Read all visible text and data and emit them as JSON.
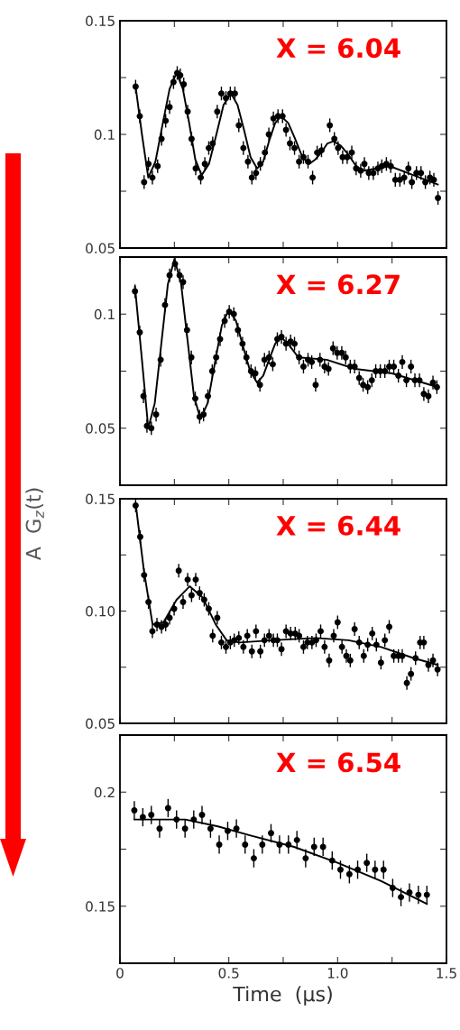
{
  "chart_data": [
    {
      "type": "scatter",
      "annotations": [
        "X = 6.04"
      ],
      "xlim": [
        0,
        1.5
      ],
      "ylim": [
        0.05,
        0.15
      ],
      "tick_labels": "y",
      "xticks": [
        {
          "value": 0,
          "label": null
        },
        {
          "value": 0.25,
          "label": null
        },
        {
          "value": 0.5,
          "label": null
        },
        {
          "value": 0.75,
          "label": null
        },
        {
          "value": 1.0,
          "label": null
        },
        {
          "value": 1.25,
          "label": null
        },
        {
          "value": 1.5,
          "label": null
        }
      ],
      "yticks": [
        0.05,
        {
          "value": 0.075,
          "label": null
        },
        0.1,
        {
          "value": 0.125,
          "label": null
        },
        0.15
      ],
      "series": [
        {
          "marker": "circle",
          "color": "#000000",
          "x": [
            0.072,
            0.091,
            0.111,
            0.131,
            0.149,
            0.173,
            0.191,
            0.21,
            0.228,
            0.246,
            0.263,
            0.277,
            0.293,
            0.311,
            0.329,
            0.348,
            0.371,
            0.39,
            0.408,
            0.426,
            0.447,
            0.466,
            0.487,
            0.507,
            0.528,
            0.546,
            0.567,
            0.588,
            0.606,
            0.625,
            0.645,
            0.666,
            0.684,
            0.705,
            0.726,
            0.747,
            0.763,
            0.781,
            0.802,
            0.823,
            0.843,
            0.864,
            0.885,
            0.906,
            0.926,
            0.964,
            0.985,
            1.002,
            1.023,
            1.044,
            1.065,
            1.085,
            1.106,
            1.123,
            1.143,
            1.164,
            1.185,
            1.203,
            1.224,
            1.244,
            1.265,
            1.286,
            1.306,
            1.325,
            1.341,
            1.362,
            1.383,
            1.403,
            1.424,
            1.442,
            1.461
          ],
          "values": [
            0.121,
            0.108,
            0.079,
            0.087,
            0.081,
            0.086,
            0.098,
            0.106,
            0.112,
            0.123,
            0.127,
            0.126,
            0.122,
            0.11,
            0.098,
            0.085,
            0.081,
            0.087,
            0.094,
            0.096,
            0.11,
            0.118,
            0.116,
            0.118,
            0.118,
            0.104,
            0.094,
            0.088,
            0.081,
            0.083,
            0.087,
            0.092,
            0.1,
            0.107,
            0.108,
            0.108,
            0.102,
            0.096,
            0.094,
            0.088,
            0.09,
            0.088,
            0.081,
            0.092,
            0.093,
            0.104,
            0.098,
            0.094,
            0.09,
            0.09,
            0.092,
            0.085,
            0.084,
            0.087,
            0.083,
            0.083,
            0.085,
            0.086,
            0.087,
            0.086,
            0.08,
            0.08,
            0.081,
            0.085,
            0.079,
            0.083,
            0.083,
            0.079,
            0.081,
            0.08,
            0.072
          ],
          "errors": [
            0.003,
            0.003,
            0.003,
            0.003,
            0.003,
            0.003,
            0.003,
            0.003,
            0.003,
            0.003,
            0.003,
            0.003,
            0.003,
            0.003,
            0.003,
            0.003,
            0.003,
            0.003,
            0.003,
            0.003,
            0.003,
            0.003,
            0.003,
            0.003,
            0.003,
            0.003,
            0.003,
            0.003,
            0.003,
            0.003,
            0.003,
            0.003,
            0.003,
            0.003,
            0.003,
            0.003,
            0.003,
            0.003,
            0.003,
            0.003,
            0.003,
            0.003,
            0.003,
            0.003,
            0.003,
            0.003,
            0.003,
            0.003,
            0.003,
            0.003,
            0.003,
            0.003,
            0.003,
            0.003,
            0.003,
            0.003,
            0.003,
            0.003,
            0.003,
            0.003,
            0.003,
            0.003,
            0.003,
            0.003,
            0.003,
            0.003,
            0.003,
            0.003,
            0.003,
            0.003,
            0.003
          ]
        },
        {
          "type": "line",
          "color": "#000000",
          "x": [
            0.072,
            0.101,
            0.13,
            0.163,
            0.195,
            0.228,
            0.26,
            0.289,
            0.318,
            0.346,
            0.375,
            0.409,
            0.443,
            0.476,
            0.51,
            0.54,
            0.57,
            0.6,
            0.63,
            0.658,
            0.685,
            0.713,
            0.74,
            0.773,
            0.805,
            0.838,
            0.87,
            0.898,
            0.925,
            0.953,
            0.98,
            1.015,
            1.05,
            1.085,
            1.12,
            1.18,
            1.24,
            1.35,
            1.46
          ],
          "values": [
            0.121,
            0.1,
            0.081,
            0.088,
            0.104,
            0.12,
            0.127,
            0.12,
            0.105,
            0.089,
            0.082,
            0.087,
            0.1,
            0.113,
            0.118,
            0.113,
            0.102,
            0.09,
            0.085,
            0.088,
            0.097,
            0.105,
            0.108,
            0.105,
            0.098,
            0.09,
            0.087,
            0.089,
            0.092,
            0.096,
            0.097,
            0.095,
            0.091,
            0.086,
            0.084,
            0.085,
            0.086,
            0.082,
            0.078
          ]
        }
      ]
    },
    {
      "type": "scatter",
      "annotations": [
        "X = 6.27"
      ],
      "xlim": [
        0,
        1.5
      ],
      "ylim": [
        0.025,
        0.125
      ],
      "tick_labels": "y",
      "xticks": [
        {
          "value": 0,
          "label": null
        },
        {
          "value": 0.25,
          "label": null
        },
        {
          "value": 0.5,
          "label": null
        },
        {
          "value": 0.75,
          "label": null
        },
        {
          "value": 1.0,
          "label": null
        },
        {
          "value": 1.25,
          "label": null
        },
        {
          "value": 1.5,
          "label": null
        }
      ],
      "yticks": [
        0.05,
        {
          "value": 0.075,
          "label": null
        },
        0.1
      ],
      "series": [
        {
          "marker": "circle",
          "color": "#000000",
          "x": [
            0.069,
            0.091,
            0.108,
            0.124,
            0.144,
            0.166,
            0.187,
            0.207,
            0.228,
            0.253,
            0.274,
            0.29,
            0.308,
            0.328,
            0.346,
            0.366,
            0.384,
            0.404,
            0.424,
            0.442,
            0.46,
            0.481,
            0.502,
            0.523,
            0.542,
            0.563,
            0.581,
            0.602,
            0.622,
            0.643,
            0.664,
            0.685,
            0.702,
            0.723,
            0.742,
            0.763,
            0.784,
            0.802,
            0.823,
            0.843,
            0.864,
            0.881,
            0.899,
            0.919,
            0.94,
            0.958,
            0.979,
            0.998,
            1.019,
            1.037,
            1.058,
            1.078,
            1.099,
            1.117,
            1.138,
            1.157,
            1.175,
            1.196,
            1.217,
            1.237,
            1.258,
            1.279,
            1.297,
            1.316,
            1.337,
            1.355,
            1.376,
            1.396,
            1.417,
            1.438,
            1.456
          ],
          "values": [
            0.11,
            0.092,
            0.064,
            0.051,
            0.05,
            0.056,
            0.08,
            0.104,
            0.117,
            0.122,
            0.117,
            0.114,
            0.093,
            0.081,
            0.063,
            0.055,
            0.056,
            0.064,
            0.075,
            0.081,
            0.089,
            0.097,
            0.101,
            0.1,
            0.093,
            0.087,
            0.081,
            0.075,
            0.074,
            0.069,
            0.08,
            0.081,
            0.078,
            0.089,
            0.09,
            0.087,
            0.088,
            0.087,
            0.081,
            0.077,
            0.08,
            0.079,
            0.069,
            0.08,
            0.077,
            0.076,
            0.085,
            0.083,
            0.083,
            0.081,
            0.077,
            0.077,
            0.072,
            0.069,
            0.068,
            0.071,
            0.075,
            0.075,
            0.075,
            0.077,
            0.077,
            0.073,
            0.079,
            0.071,
            0.077,
            0.071,
            0.071,
            0.065,
            0.064,
            0.07,
            0.068
          ],
          "errors": [
            0.003,
            0.003,
            0.003,
            0.003,
            0.003,
            0.003,
            0.003,
            0.003,
            0.003,
            0.003,
            0.003,
            0.003,
            0.003,
            0.003,
            0.003,
            0.003,
            0.003,
            0.003,
            0.003,
            0.003,
            0.003,
            0.003,
            0.003,
            0.003,
            0.003,
            0.003,
            0.003,
            0.003,
            0.003,
            0.003,
            0.003,
            0.003,
            0.003,
            0.003,
            0.003,
            0.003,
            0.003,
            0.003,
            0.003,
            0.003,
            0.003,
            0.003,
            0.003,
            0.003,
            0.003,
            0.003,
            0.003,
            0.003,
            0.003,
            0.003,
            0.003,
            0.003,
            0.003,
            0.003,
            0.003,
            0.003,
            0.003,
            0.003,
            0.003,
            0.003,
            0.003,
            0.003,
            0.003,
            0.003,
            0.003,
            0.003,
            0.003,
            0.003,
            0.003,
            0.003,
            0.003
          ]
        },
        {
          "type": "line",
          "color": "#000000",
          "x": [
            0.069,
            0.1,
            0.13,
            0.16,
            0.19,
            0.22,
            0.25,
            0.28,
            0.31,
            0.34,
            0.37,
            0.403,
            0.435,
            0.468,
            0.5,
            0.533,
            0.565,
            0.598,
            0.63,
            0.658,
            0.685,
            0.713,
            0.74,
            0.78,
            0.82,
            0.95,
            1.08,
            1.25,
            1.46
          ],
          "values": [
            0.112,
            0.081,
            0.05,
            0.061,
            0.087,
            0.113,
            0.124,
            0.114,
            0.089,
            0.064,
            0.054,
            0.061,
            0.078,
            0.095,
            0.102,
            0.097,
            0.086,
            0.075,
            0.07,
            0.073,
            0.08,
            0.087,
            0.09,
            0.086,
            0.081,
            0.08,
            0.076,
            0.074,
            0.068
          ]
        }
      ]
    },
    {
      "type": "scatter",
      "annotations": [
        "X = 6.44"
      ],
      "ylabel": "A  G$_{z}$(t)",
      "xlim": [
        0,
        1.5
      ],
      "ylim": [
        0.05,
        0.15
      ],
      "tick_labels": "y",
      "xticks": [
        {
          "value": 0,
          "label": null
        },
        {
          "value": 0.25,
          "label": null
        },
        {
          "value": 0.5,
          "label": null
        },
        {
          "value": 0.75,
          "label": null
        },
        {
          "value": 1.0,
          "label": null
        },
        {
          "value": 1.25,
          "label": null
        },
        {
          "value": 1.5,
          "label": null
        }
      ],
      "yticks": [
        0.05,
        {
          "value": 0.075,
          "label": null
        },
        {
          "value": 0.1,
          "label": "0.10"
        },
        {
          "value": 0.125,
          "label": null
        },
        0.15
      ],
      "series": [
        {
          "marker": "circle",
          "color": "#000000",
          "x": [
            0.072,
            0.093,
            0.111,
            0.131,
            0.149,
            0.17,
            0.191,
            0.21,
            0.228,
            0.249,
            0.27,
            0.29,
            0.311,
            0.329,
            0.348,
            0.366,
            0.387,
            0.408,
            0.426,
            0.447,
            0.466,
            0.487,
            0.507,
            0.525,
            0.546,
            0.567,
            0.585,
            0.606,
            0.625,
            0.645,
            0.664,
            0.685,
            0.705,
            0.723,
            0.742,
            0.763,
            0.784,
            0.805,
            0.823,
            0.843,
            0.861,
            0.882,
            0.901,
            0.922,
            0.94,
            0.961,
            0.982,
            1.0,
            1.02,
            1.04,
            1.058,
            1.078,
            1.099,
            1.12,
            1.138,
            1.159,
            1.178,
            1.199,
            1.217,
            1.237,
            1.258,
            1.279,
            1.297,
            1.318,
            1.337,
            1.358,
            1.379,
            1.396,
            1.417,
            1.438,
            1.459
          ],
          "values": [
            0.147,
            0.133,
            0.116,
            0.104,
            0.091,
            0.094,
            0.093,
            0.094,
            0.097,
            0.101,
            0.118,
            0.104,
            0.114,
            0.107,
            0.114,
            0.108,
            0.105,
            0.101,
            0.089,
            0.097,
            0.086,
            0.084,
            0.086,
            0.087,
            0.088,
            0.084,
            0.089,
            0.082,
            0.091,
            0.082,
            0.087,
            0.089,
            0.087,
            0.087,
            0.083,
            0.091,
            0.09,
            0.09,
            0.089,
            0.084,
            0.086,
            0.086,
            0.087,
            0.091,
            0.084,
            0.078,
            0.089,
            0.095,
            0.084,
            0.08,
            0.078,
            0.092,
            0.086,
            0.08,
            0.085,
            0.09,
            0.085,
            0.077,
            0.087,
            0.093,
            0.08,
            0.08,
            0.08,
            0.068,
            0.072,
            0.079,
            0.086,
            0.086,
            0.076,
            0.078,
            0.074
          ],
          "errors": [
            0.003,
            0.003,
            0.003,
            0.003,
            0.003,
            0.003,
            0.003,
            0.003,
            0.003,
            0.003,
            0.003,
            0.003,
            0.003,
            0.003,
            0.003,
            0.003,
            0.003,
            0.003,
            0.003,
            0.003,
            0.003,
            0.003,
            0.003,
            0.003,
            0.003,
            0.003,
            0.003,
            0.003,
            0.003,
            0.003,
            0.003,
            0.003,
            0.003,
            0.003,
            0.003,
            0.003,
            0.003,
            0.003,
            0.003,
            0.003,
            0.003,
            0.003,
            0.003,
            0.003,
            0.003,
            0.003,
            0.003,
            0.003,
            0.003,
            0.003,
            0.003,
            0.003,
            0.003,
            0.003,
            0.003,
            0.003,
            0.003,
            0.003,
            0.003,
            0.003,
            0.003,
            0.003,
            0.003,
            0.003,
            0.003,
            0.003,
            0.003,
            0.003,
            0.003,
            0.003,
            0.003
          ]
        },
        {
          "type": "line",
          "color": "#000000",
          "x": [
            0.072,
            0.11,
            0.15,
            0.2,
            0.26,
            0.32,
            0.38,
            0.44,
            0.49,
            0.55,
            0.7,
            0.9,
            1.05,
            1.2,
            1.35,
            1.46
          ],
          "values": [
            0.148,
            0.118,
            0.094,
            0.095,
            0.105,
            0.111,
            0.106,
            0.094,
            0.087,
            0.086,
            0.087,
            0.088,
            0.087,
            0.084,
            0.079,
            0.076
          ]
        }
      ]
    },
    {
      "type": "scatter",
      "annotations": [
        "X = 6.54"
      ],
      "xlabel": "Time  (µs)",
      "xlim": [
        0,
        1.5
      ],
      "ylim": [
        0.125,
        0.225
      ],
      "xticks": [
        0,
        {
          "value": 0.25,
          "label": null
        },
        0.5,
        {
          "value": 0.75,
          "label": null
        },
        {
          "value": 1.0,
          "label": "1.0"
        },
        {
          "value": 1.25,
          "label": null
        },
        1.5
      ],
      "yticks": [
        0.15,
        {
          "value": 0.175,
          "label": null
        },
        0.2
      ],
      "series": [
        {
          "marker": "circle",
          "color": "#000000",
          "x": [
            0.066,
            0.105,
            0.144,
            0.182,
            0.221,
            0.26,
            0.299,
            0.339,
            0.377,
            0.416,
            0.456,
            0.495,
            0.535,
            0.575,
            0.615,
            0.654,
            0.694,
            0.733,
            0.774,
            0.813,
            0.853,
            0.892,
            0.933,
            0.975,
            1.013,
            1.054,
            1.092,
            1.134,
            1.172,
            1.211,
            1.253,
            1.291,
            1.33,
            1.371,
            1.41
          ],
          "values": [
            0.192,
            0.189,
            0.19,
            0.184,
            0.193,
            0.188,
            0.184,
            0.188,
            0.19,
            0.184,
            0.177,
            0.183,
            0.184,
            0.177,
            0.171,
            0.177,
            0.182,
            0.177,
            0.177,
            0.179,
            0.171,
            0.176,
            0.176,
            0.17,
            0.166,
            0.164,
            0.166,
            0.169,
            0.166,
            0.166,
            0.158,
            0.154,
            0.156,
            0.155,
            0.155
          ],
          "errors": [
            0.004,
            0.004,
            0.004,
            0.004,
            0.004,
            0.004,
            0.004,
            0.004,
            0.004,
            0.004,
            0.004,
            0.004,
            0.004,
            0.004,
            0.004,
            0.004,
            0.004,
            0.004,
            0.004,
            0.004,
            0.004,
            0.004,
            0.004,
            0.004,
            0.004,
            0.004,
            0.004,
            0.004,
            0.004,
            0.004,
            0.004,
            0.004,
            0.004,
            0.004,
            0.004
          ]
        },
        {
          "type": "line",
          "color": "#000000",
          "x": [
            0.066,
            0.3,
            0.45,
            0.6,
            0.8,
            1.0,
            1.2,
            1.41
          ],
          "values": [
            0.188,
            0.188,
            0.185,
            0.181,
            0.176,
            0.169,
            0.161,
            0.151
          ]
        }
      ]
    }
  ]
}
